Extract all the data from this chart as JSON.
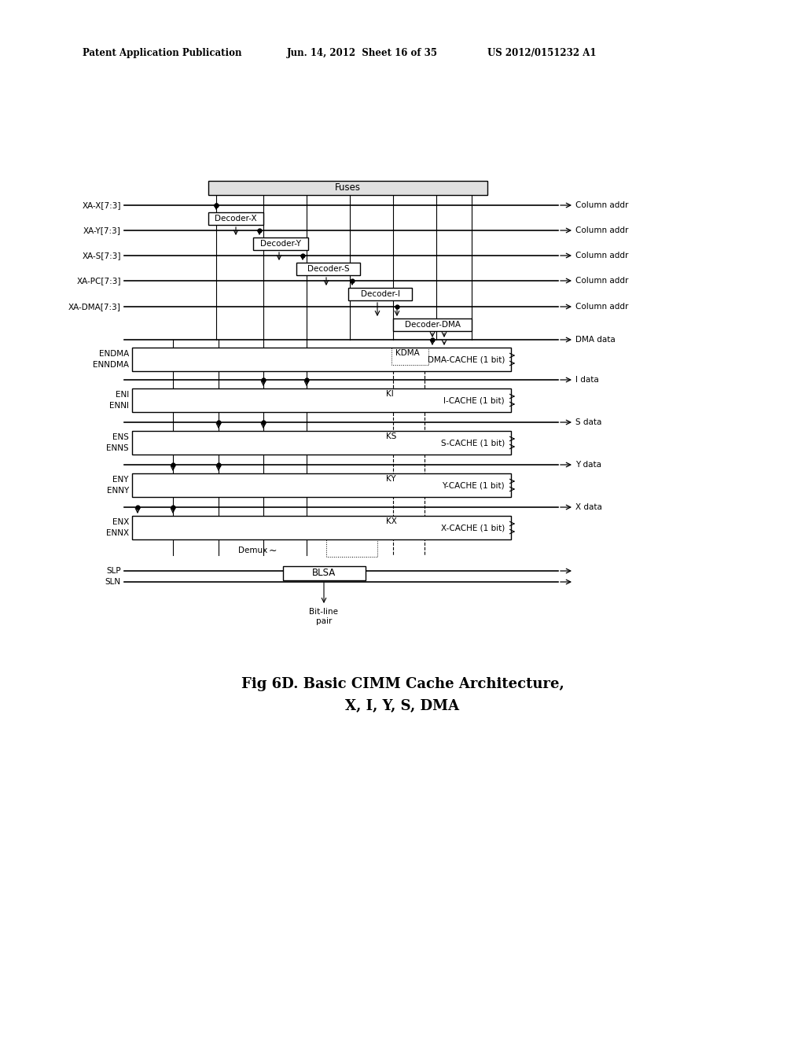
{
  "title_line1": "Fig 6D. Basic CIMM Cache Architecture,",
  "title_line2": "X, I, Y, S, DMA",
  "header_left": "Patent Application Publication",
  "header_mid": "Jun. 14, 2012  Sheet 16 of 35",
  "header_right": "US 2012/0151232 A1",
  "bg_color": "#ffffff"
}
